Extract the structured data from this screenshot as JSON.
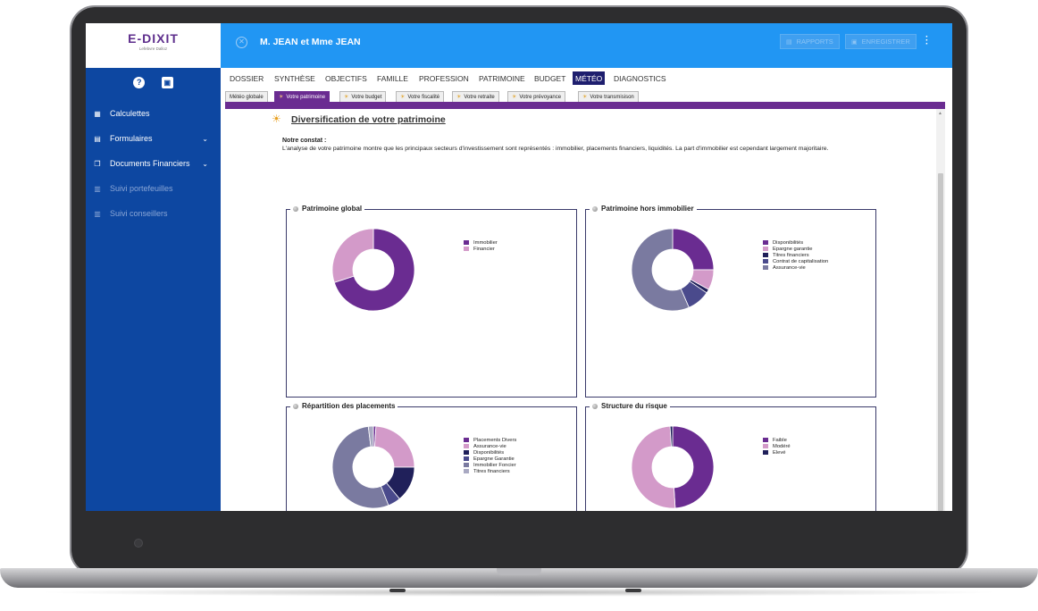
{
  "app": {
    "logo": "E-DIXIT",
    "logo_sub": "Lefebvre Dalloz"
  },
  "sidebar": {
    "items": [
      {
        "label": "Calculettes",
        "icon": "calculator-icon",
        "disabled": false
      },
      {
        "label": "Formulaires",
        "icon": "form-icon",
        "disabled": false,
        "expandable": true
      },
      {
        "label": "Documents Financiers",
        "icon": "documents-icon",
        "disabled": false,
        "expandable": true
      },
      {
        "label": "Suivi portefeuilles",
        "icon": "portfolio-icon",
        "disabled": true
      },
      {
        "label": "Suivi conseillers",
        "icon": "advisors-icon",
        "disabled": true
      }
    ]
  },
  "topbar": {
    "client": "M. JEAN et Mme JEAN",
    "rapports": "RAPPORTS",
    "enregistrer": "ENREGISTRER"
  },
  "tabs": [
    {
      "label": "DOSSIER",
      "active": false
    },
    {
      "label": "SYNTHÈSE",
      "active": false
    },
    {
      "label": "OBJECTIFS",
      "active": false
    },
    {
      "label": "FAMILLE",
      "active": false
    },
    {
      "label": "PROFESSION",
      "active": false
    },
    {
      "label": "PATRIMOINE",
      "active": false
    },
    {
      "label": "BUDGET",
      "active": false
    },
    {
      "label": "MÉTÉO",
      "active": true
    },
    {
      "label": "DIAGNOSTICS",
      "active": false
    }
  ],
  "subtabs": [
    {
      "label": "Météo globale",
      "active": false
    },
    {
      "label": "Votre patrimoine",
      "active": true
    },
    {
      "label": "Votre budget",
      "active": false
    },
    {
      "label": "Votre fiscalité",
      "active": false
    },
    {
      "label": "Votre retraite",
      "active": false
    },
    {
      "label": "Votre prévoyance",
      "active": false
    },
    {
      "label": "Votre transmisison",
      "active": false
    }
  ],
  "content": {
    "title": "Diversification de votre patrimoine",
    "constat_label": "Notre constat :",
    "constat_text": "L'analyse de votre patrimoine montre que les principaux secteurs d'investissement sont représentés : immobilier, placements financiers, liquidités. La part d'immobilier est cependant largement majoritaire."
  },
  "chart_data": [
    {
      "type": "pie",
      "title": "Patrimoine global",
      "categories": [
        "Immobilier",
        "Financier"
      ],
      "values": [
        70,
        30
      ],
      "colors": [
        "#6a2c91",
        "#d39ac9"
      ]
    },
    {
      "type": "pie",
      "title": "Patrimoine hors immobilier",
      "categories": [
        "Disponibilités",
        "Epargne garantie",
        "Titres financiers",
        "Contrat de capitalisation",
        "Assurance-vie"
      ],
      "values": [
        25,
        8,
        1.5,
        9,
        56.5
      ],
      "colors": [
        "#6a2c91",
        "#d39ac9",
        "#20205a",
        "#4a4a8c",
        "#7a7aa0"
      ]
    },
    {
      "type": "pie",
      "title": "Répartition des placements",
      "categories": [
        "Placements Divers",
        "Assurance-vie",
        "Disponibilités",
        "Epargne Garantie",
        "Immobilier Foncier",
        "Titres financiers"
      ],
      "values": [
        1,
        24,
        14,
        5,
        54,
        2
      ],
      "colors": [
        "#6a2c91",
        "#d39ac9",
        "#20205a",
        "#4a4a8c",
        "#7a7aa0",
        "#a9a9c2"
      ]
    },
    {
      "type": "pie",
      "title": "Structure du risque",
      "categories": [
        "Faible",
        "Modéré",
        "Elevé"
      ],
      "values": [
        49,
        50,
        1
      ],
      "colors": [
        "#6a2c91",
        "#d39ac9",
        "#20205a"
      ]
    }
  ]
}
